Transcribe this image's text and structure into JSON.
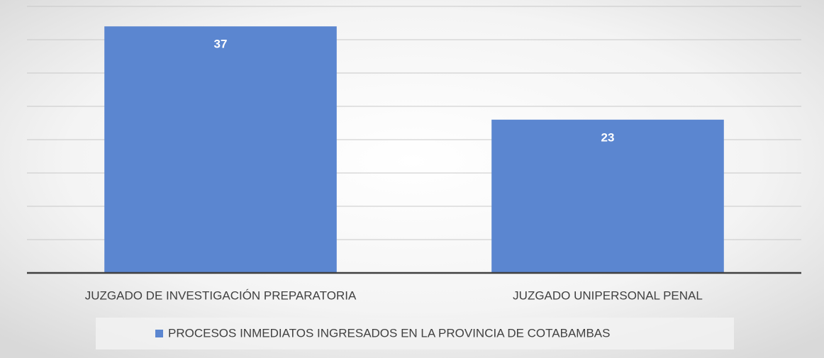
{
  "chart_data": {
    "type": "bar",
    "categories": [
      "JUZGADO DE INVESTIGACIÓN PREPARATORIA",
      "JUZGADO UNIPERSONAL PENAL"
    ],
    "series": [
      {
        "name": "PROCESOS INMEDIATOS INGRESADOS EN LA PROVINCIA DE COTABAMBAS",
        "color": "#5b86d0",
        "values": [
          37,
          23
        ]
      }
    ],
    "ylim": [
      0,
      40
    ],
    "yticks": [
      0,
      5,
      10,
      15,
      20,
      25,
      30,
      35,
      40
    ],
    "grid": true
  }
}
